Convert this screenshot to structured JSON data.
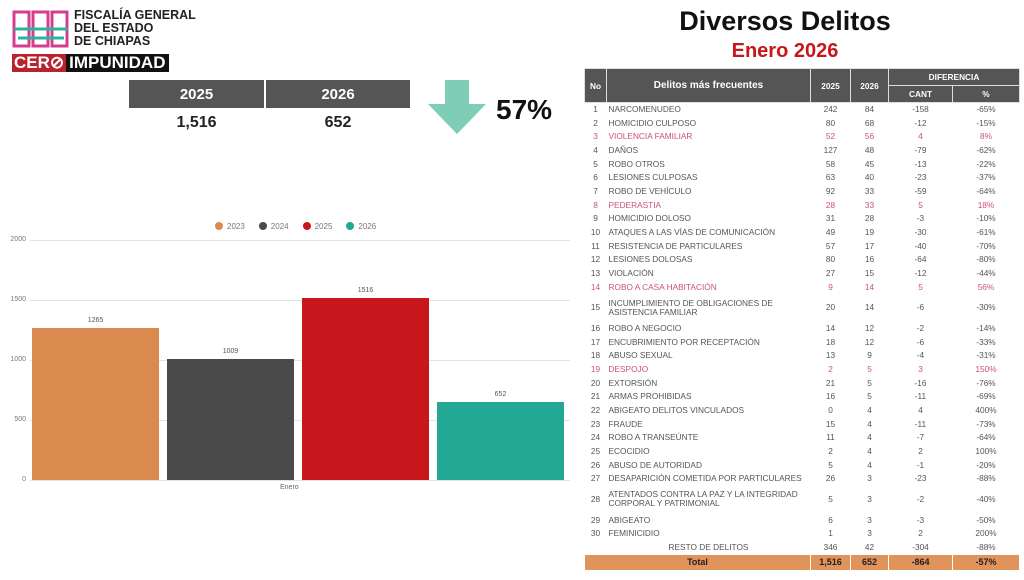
{
  "header": {
    "org_name": [
      "FISCALÍA GENERAL",
      "DEL ESTADO",
      "DE CHIAPAS"
    ],
    "slogan_1": "CER",
    "slogan_2": "IMPUNIDAD",
    "title": "Diversos Delitos",
    "subtitle": "Enero 2026"
  },
  "summary": {
    "year_a": "2025",
    "year_b": "2026",
    "value_a": "1,516",
    "value_b": "652",
    "change": "57%",
    "arrow": "arrow-down-icon",
    "arrow_color": "#7fcdb7"
  },
  "chart_data": {
    "type": "bar",
    "categories": [
      "Enero"
    ],
    "series": [
      {
        "name": "2023",
        "values": [
          1265
        ],
        "color": "#d98a4e"
      },
      {
        "name": "2024",
        "values": [
          1009
        ],
        "color": "#4a4a4a"
      },
      {
        "name": "2025",
        "values": [
          1516
        ],
        "color": "#c8161d"
      },
      {
        "name": "2026",
        "values": [
          652
        ],
        "color": "#22a894"
      }
    ],
    "yticks": [
      "0",
      "500",
      "1000",
      "1500",
      "2000"
    ],
    "ylim": [
      0,
      2000
    ],
    "legend": "top",
    "grid": true
  },
  "table": {
    "headers": {
      "no": "No",
      "crime": "Delitos más frecuentes",
      "y2025": "2025",
      "y2026": "2026",
      "diff": "DIFERENCIA",
      "cant": "CANT",
      "pct": "%"
    },
    "rows": [
      [
        "1",
        "NARCOMENUDEO",
        "242",
        "84",
        "-158",
        "-65%"
      ],
      [
        "2",
        "HOMICIDIO CULPOSO",
        "80",
        "68",
        "-12",
        "-15%"
      ],
      [
        "3",
        "VIOLENCIA FAMILIAR",
        "52",
        "56",
        "4",
        "8%"
      ],
      [
        "4",
        "DAÑOS",
        "127",
        "48",
        "-79",
        "-62%"
      ],
      [
        "5",
        "ROBO OTROS",
        "58",
        "45",
        "-13",
        "-22%"
      ],
      [
        "6",
        "LESIONES CULPOSAS",
        "63",
        "40",
        "-23",
        "-37%"
      ],
      [
        "7",
        "ROBO DE VEHÍCULO",
        "92",
        "33",
        "-59",
        "-64%"
      ],
      [
        "8",
        "PEDERASTIA",
        "28",
        "33",
        "5",
        "18%"
      ],
      [
        "9",
        "HOMICIDIO DOLOSO",
        "31",
        "28",
        "-3",
        "-10%"
      ],
      [
        "10",
        "ATAQUES A LAS VÍAS DE COMUNICACIÓN",
        "49",
        "19",
        "-30",
        "-61%"
      ],
      [
        "11",
        "RESISTENCIA DE PARTICULARES",
        "57",
        "17",
        "-40",
        "-70%"
      ],
      [
        "12",
        "LESIONES DOLOSAS",
        "80",
        "16",
        "-64",
        "-80%"
      ],
      [
        "13",
        "VIOLACIÓN",
        "27",
        "15",
        "-12",
        "-44%"
      ],
      [
        "14",
        "ROBO A CASA HABITACIÓN",
        "9",
        "14",
        "5",
        "56%"
      ],
      [
        "15",
        "INCUMPLIMIENTO DE OBLIGACIONES DE ASISTENCIA FAMILIAR",
        "20",
        "14",
        "-6",
        "-30%"
      ],
      [
        "16",
        "ROBO A NEGOCIO",
        "14",
        "12",
        "-2",
        "-14%"
      ],
      [
        "17",
        "ENCUBRIMIENTO POR RECEPTACIÓN",
        "18",
        "12",
        "-6",
        "-33%"
      ],
      [
        "18",
        "ABUSO SEXUAL",
        "13",
        "9",
        "-4",
        "-31%"
      ],
      [
        "19",
        "DESPOJO",
        "2",
        "5",
        "3",
        "150%"
      ],
      [
        "20",
        "EXTORSIÓN",
        "21",
        "5",
        "-16",
        "-76%"
      ],
      [
        "21",
        "ARMAS PROHIBIDAS",
        "16",
        "5",
        "-11",
        "-69%"
      ],
      [
        "22",
        "ABIGEATO DELITOS VINCULADOS",
        "0",
        "4",
        "4",
        "400%"
      ],
      [
        "23",
        "FRAUDE",
        "15",
        "4",
        "-11",
        "-73%"
      ],
      [
        "24",
        "ROBO A TRANSEÚNTE",
        "11",
        "4",
        "-7",
        "-64%"
      ],
      [
        "25",
        "ECOCIDIO",
        "2",
        "4",
        "2",
        "100%"
      ],
      [
        "26",
        "ABUSO DE AUTORIDAD",
        "5",
        "4",
        "-1",
        "-20%"
      ],
      [
        "27",
        "DESAPARICIÓN COMETIDA POR PARTICULARES",
        "26",
        "3",
        "-23",
        "-88%"
      ],
      [
        "28",
        "ATENTADOS CONTRA LA PAZ Y LA INTEGRIDAD CORPORAL Y PATRIMONIAL",
        "5",
        "3",
        "-2",
        "-40%"
      ],
      [
        "29",
        "ABIGEATO",
        "6",
        "3",
        "-3",
        "-50%"
      ],
      [
        "30",
        "FEMINICIDIO",
        "1",
        "3",
        "2",
        "200%"
      ]
    ],
    "highlight_rows": [
      "3",
      "8",
      "14",
      "19"
    ],
    "highlight_color": "#c9527e",
    "rest": [
      "RESTO DE DELITOS",
      "346",
      "42",
      "-304",
      "-88%"
    ],
    "total": [
      "Total",
      "1,516",
      "652",
      "-864",
      "-57%"
    ]
  }
}
